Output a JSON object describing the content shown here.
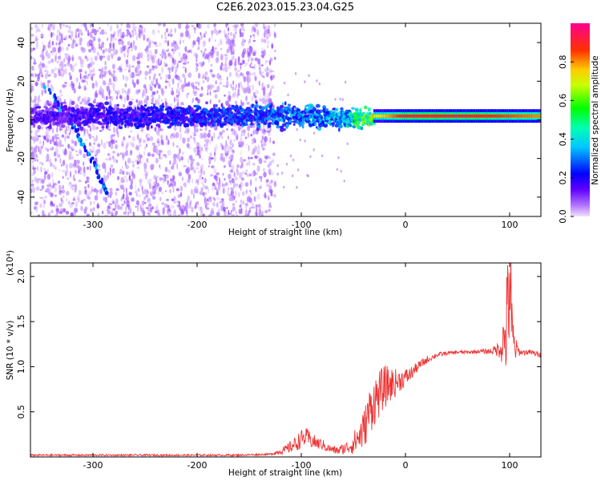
{
  "figure_title": "C2E6.2023.015.23.04.G25",
  "chart_data": [
    {
      "type": "heatmap",
      "title": "",
      "xlabel": "Height of straight line (km)",
      "ylabel": "Frequency (Hz)",
      "xlim": [
        -360,
        130
      ],
      "ylim": [
        -50,
        50
      ],
      "xticks": [
        -300,
        -200,
        -100,
        0,
        100
      ],
      "yticks": [
        -40,
        -20,
        0,
        20,
        40
      ],
      "colorbar": {
        "label": "Normalized spectral amplitude",
        "ticks": [
          0.0,
          0.2,
          0.4,
          0.6,
          0.8
        ],
        "range": [
          0,
          1
        ],
        "colormap": [
          "#f0e0ff",
          "#8800ff",
          "#0000ff",
          "#00ffff",
          "#00ff00",
          "#ffff00",
          "#ff8000",
          "#ff0000",
          "#ff0080"
        ]
      },
      "features": [
        {
          "name": "noise-floor",
          "x_range": [
            -360,
            -125
          ],
          "freq_range": [
            -50,
            50
          ],
          "amplitude": 0.05
        },
        {
          "name": "main-band",
          "x_range": [
            -360,
            130
          ],
          "center_freq": 2,
          "amplitude_profile": [
            [
              -360,
              0.15
            ],
            [
              -125,
              0.3
            ],
            [
              -60,
              0.4
            ],
            [
              -30,
              0.7
            ],
            [
              0,
              0.9
            ],
            [
              60,
              0.9
            ],
            [
              130,
              0.8
            ]
          ]
        },
        {
          "name": "diagonal-streak",
          "points": [
            [
              -345,
              17
            ],
            [
              -320,
              -2
            ],
            [
              -300,
              -22
            ],
            [
              -285,
              -39
            ]
          ],
          "amplitude": 0.3
        }
      ]
    },
    {
      "type": "line",
      "title": "",
      "xlabel": "Height of straight line (km)",
      "ylabel": "SNR (10 * v/v)",
      "y_multiplier": "(x10⁴)",
      "xlim": [
        -360,
        130
      ],
      "ylim": [
        0,
        2.15
      ],
      "xticks": [
        -300,
        -200,
        -100,
        0,
        100
      ],
      "yticks": [
        0.5,
        1.0,
        1.5,
        2.0
      ],
      "series": [
        {
          "color": "#ee3333",
          "x": [
            -360,
            -320,
            -280,
            -240,
            -200,
            -160,
            -130,
            -115,
            -105,
            -100,
            -95,
            -90,
            -85,
            -80,
            -75,
            -70,
            -65,
            -60,
            -55,
            -50,
            -45,
            -40,
            -35,
            -30,
            -25,
            -20,
            -15,
            -10,
            -5,
            0,
            5,
            10,
            15,
            20,
            25,
            30,
            40,
            50,
            60,
            70,
            80,
            85,
            90,
            95,
            98,
            100,
            102,
            105,
            110,
            120,
            130
          ],
          "y": [
            0.02,
            0.02,
            0.02,
            0.02,
            0.02,
            0.02,
            0.03,
            0.08,
            0.15,
            0.2,
            0.22,
            0.18,
            0.15,
            0.14,
            0.1,
            0.08,
            0.07,
            0.09,
            0.11,
            0.15,
            0.22,
            0.3,
            0.5,
            0.62,
            0.7,
            0.78,
            0.8,
            0.82,
            0.85,
            0.88,
            0.92,
            0.98,
            1.03,
            1.07,
            1.1,
            1.13,
            1.15,
            1.16,
            1.16,
            1.17,
            1.17,
            1.18,
            1.2,
            1.3,
            1.5,
            2.1,
            1.3,
            1.2,
            1.16,
            1.16,
            1.13
          ],
          "noise": [
            0.01,
            0.01,
            0.01,
            0.01,
            0.01,
            0.01,
            0.01,
            0.05,
            0.09,
            0.1,
            0.1,
            0.09,
            0.07,
            0.06,
            0.05,
            0.04,
            0.05,
            0.06,
            0.08,
            0.12,
            0.18,
            0.22,
            0.26,
            0.28,
            0.26,
            0.24,
            0.2,
            0.16,
            0.12,
            0.1,
            0.08,
            0.06,
            0.05,
            0.04,
            0.03,
            0.03,
            0.02,
            0.02,
            0.02,
            0.02,
            0.03,
            0.05,
            0.1,
            0.35,
            0.7,
            1.0,
            0.6,
            0.15,
            0.03,
            0.03,
            0.03
          ]
        }
      ]
    }
  ]
}
